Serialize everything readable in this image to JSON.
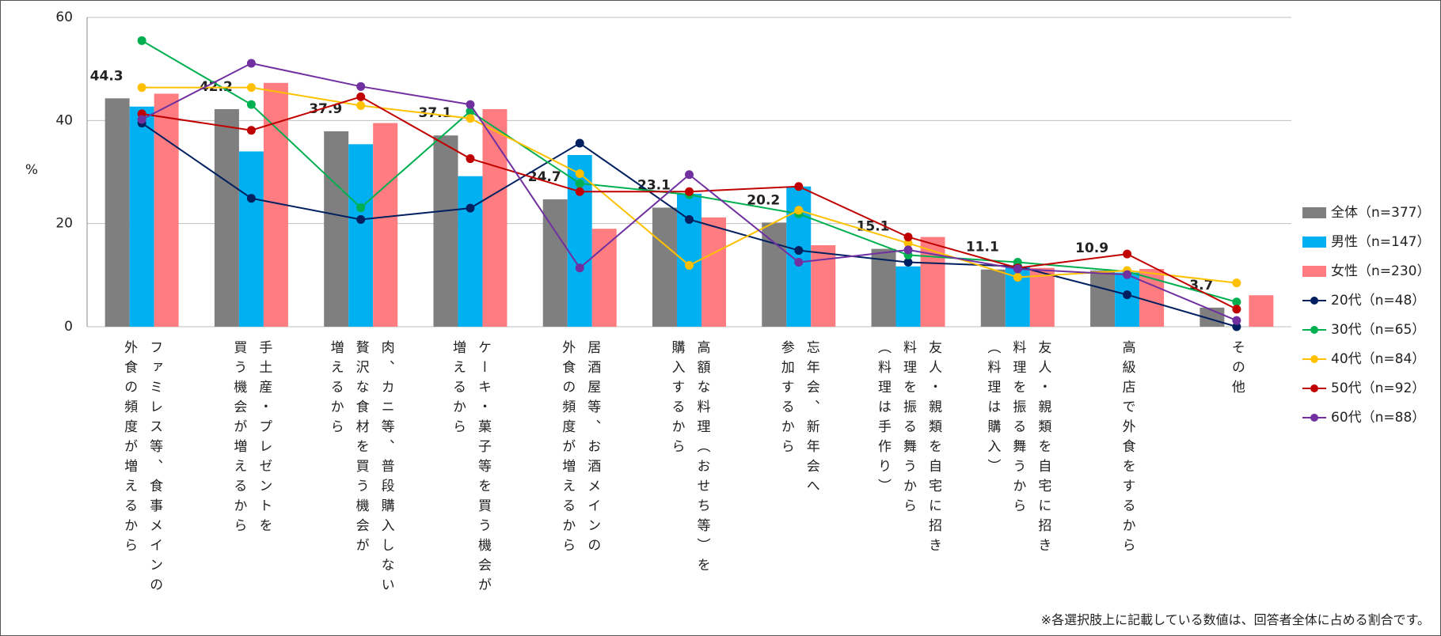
{
  "chart_data": {
    "type": "bar_line",
    "y_label": "%",
    "note": "※各選択肢上に記載している数値は、回答者全体に占める割合です。",
    "categories": [
      "ファミレス等、食事メインの\n外食の頻度が増えるから",
      "手土産・プレゼントを\n買う機会が増えるから",
      "肉、カニ等、普段購入しない\n贅沢な食材を買う機会が\n増えるから",
      "ケーキ・菓子等を買う機会が\n増えるから",
      "居酒屋等、お酒メインの\n外食の頻度が増えるから",
      "高額な料理（おせち等）を\n購入するから",
      "忘年会、新年会へ\n参加するから",
      "友人・親類を自宅に招き\n料理を振る舞うから\n（料理は手作り）",
      "友人・親類を自宅に招き\n料理を振る舞うから\n（料理は購入）",
      "高級店で外食をするから",
      "その他"
    ],
    "series": [
      {
        "name": "全体（n=377）",
        "kind": "bar",
        "color": "#7f7f7f",
        "show_labels": true,
        "values": [
          44.3,
          42.2,
          37.9,
          37.1,
          24.7,
          23.1,
          20.2,
          15.1,
          11.1,
          10.9,
          3.7
        ]
      },
      {
        "name": "男性（n=147）",
        "kind": "bar",
        "color": "#00b0f0",
        "values": [
          42.7,
          34.0,
          35.4,
          29.2,
          33.3,
          25.8,
          27.2,
          11.7,
          11.7,
          10.5,
          0
        ]
      },
      {
        "name": "女性（n=230）",
        "kind": "bar",
        "color": "#ff7c80",
        "values": [
          45.2,
          47.3,
          39.5,
          42.2,
          19.0,
          21.2,
          15.8,
          17.4,
          11.4,
          11.2,
          6.1
        ]
      },
      {
        "name": "20代（n=48）",
        "kind": "line",
        "color": "#002060",
        "values": [
          39.5,
          24.9,
          20.8,
          23.0,
          35.6,
          20.8,
          14.8,
          12.5,
          11.7,
          6.2,
          0
        ]
      },
      {
        "name": "30代（n=65）",
        "kind": "line",
        "color": "#00b050",
        "values": [
          55.5,
          43.1,
          23.1,
          41.8,
          27.8,
          25.6,
          21.9,
          13.9,
          12.5,
          10.7,
          4.8
        ]
      },
      {
        "name": "40代（n=84）",
        "kind": "line",
        "color": "#ffc000",
        "values": [
          46.4,
          46.4,
          42.9,
          40.4,
          29.7,
          11.9,
          22.6,
          16.2,
          9.6,
          10.9,
          8.5
        ]
      },
      {
        "name": "50代（n=92）",
        "kind": "line",
        "color": "#c00000",
        "values": [
          41.3,
          38.1,
          44.6,
          32.6,
          26.2,
          26.2,
          27.2,
          17.4,
          11.4,
          14.1,
          3.4
        ]
      },
      {
        "name": "60代（n=88）",
        "kind": "line",
        "color": "#7030a0",
        "values": [
          40.2,
          51.1,
          46.6,
          43.1,
          11.4,
          29.5,
          12.5,
          14.9,
          11.2,
          10.1,
          1.2
        ]
      }
    ],
    "ylim": [
      0,
      60
    ],
    "yticks": [
      0,
      20,
      40,
      60
    ],
    "grid": true,
    "legend": "right"
  }
}
